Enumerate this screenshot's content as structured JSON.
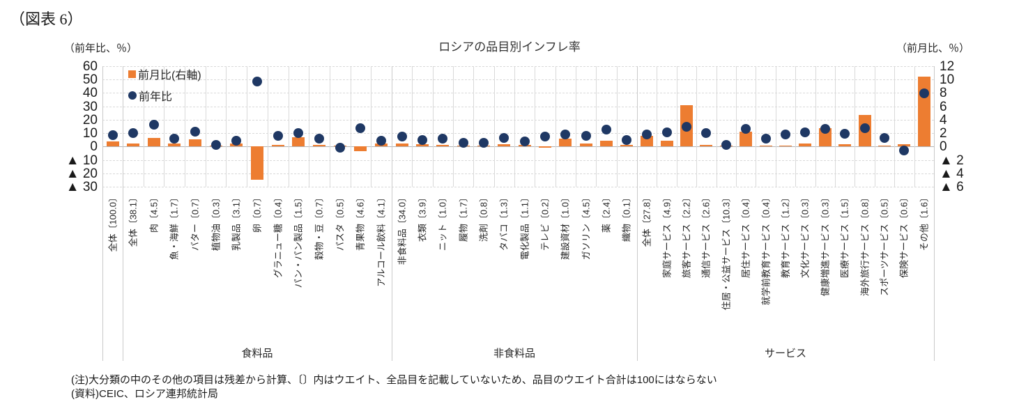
{
  "figure_label": "（図表 6）",
  "title": "ロシアの品目別インフレ率",
  "axis_left": {
    "header": "（前年比、％）",
    "ticks": [
      "60",
      "50",
      "40",
      "30",
      "20",
      "10",
      "0",
      "▲ 10",
      "▲ 20",
      "▲ 30"
    ]
  },
  "axis_right": {
    "header": "（前月比、％）",
    "ticks": [
      "12",
      "10",
      "8",
      "6",
      "4",
      "2",
      "0",
      "▲ 2",
      "▲ 4",
      "▲ 6"
    ]
  },
  "legend": {
    "mom_label": "前月比(右軸)",
    "yoy_label": "前年比"
  },
  "colors": {
    "bar": "#ED7D31",
    "dot": "#1F3864",
    "grid": "#D9D9D9",
    "zero_line": "#B3B3B3",
    "text": "#262626"
  },
  "notes": [
    "(注)大分類の中のその他の項目は残差から計算、〔〕内はウエイト、全品目を記載していないため、品目のウエイト合計は100にはならない",
    "(資料)CEIC、ロシア連邦統計局"
  ],
  "chart_data": {
    "type": "bar",
    "subtype": "combo bar(right axis)+scatter(left axis)",
    "title": "ロシアの品目別インフレ率",
    "left_axis": {
      "label": "前年比、％",
      "range": [
        -30,
        60
      ],
      "tick_step": 10,
      "series": "前年比 (dots)"
    },
    "right_axis": {
      "label": "前月比、％",
      "range": [
        -6,
        12
      ],
      "tick_step": 2,
      "series": "前月比 (bars)"
    },
    "grid": true,
    "legend_position": "top-left inside plot",
    "groups": [
      "食料品",
      "非食料品",
      "サービス"
    ],
    "group_labels": [
      "食料品",
      "非食料品",
      "サービス"
    ],
    "categories": [
      {
        "label": "全体〔100.0〕",
        "group": "",
        "yoy": 8.7,
        "mom": 0.8
      },
      {
        "label": "全体〔38.1〕",
        "group": "食料品",
        "yoy": 9.8,
        "mom": 0.4
      },
      {
        "label": "肉〔4.5〕",
        "group": "食料品",
        "yoy": 16.5,
        "mom": 1.3
      },
      {
        "label": "魚・海鮮〔1.7〕",
        "group": "食料品",
        "yoy": 6.0,
        "mom": 0.5
      },
      {
        "label": "バター〔0.7〕",
        "group": "食料品",
        "yoy": 11.3,
        "mom": 1.1
      },
      {
        "label": "植物油〔0.3〕",
        "group": "食料品",
        "yoy": 1.2,
        "mom": 0.1
      },
      {
        "label": "乳製品〔3.1〕",
        "group": "食料品",
        "yoy": 4.3,
        "mom": 0.45
      },
      {
        "label": "卵〔0.7〕",
        "group": "食料品",
        "yoy": 48.5,
        "mom": -5.0
      },
      {
        "label": "グラニュー糖〔0.4〕",
        "group": "食料品",
        "yoy": 7.8,
        "mom": 0.25
      },
      {
        "label": "パン・パン製品〔1.5〕",
        "group": "食料品",
        "yoy": 9.9,
        "mom": 1.4
      },
      {
        "label": "穀物・豆〔0.7〕",
        "group": "食料品",
        "yoy": 5.9,
        "mom": 0.25
      },
      {
        "label": "パスタ〔0.5〕",
        "group": "食料品",
        "yoy": -1.0,
        "mom": 0.1
      },
      {
        "label": "青果物〔4.6〕",
        "group": "食料品",
        "yoy": 13.7,
        "mom": -0.7
      },
      {
        "label": "アルコール飲料〔4.1〕",
        "group": "食料品",
        "yoy": 4.3,
        "mom": 0.4
      },
      {
        "label": "非食料品〔34.0〕",
        "group": "非食料品",
        "yoy": 7.5,
        "mom": 0.45
      },
      {
        "label": "衣類〔3.9〕",
        "group": "非食料品",
        "yoy": 5.0,
        "mom": 0.3
      },
      {
        "label": "ニット〔1.0〕",
        "group": "非食料品",
        "yoy": 6.0,
        "mom": 0.25
      },
      {
        "label": "履物〔1.7〕",
        "group": "非食料品",
        "yoy": 3.0,
        "mom": 0.1
      },
      {
        "label": "洗剤〔0.8〕",
        "group": "非食料品",
        "yoy": 3.0,
        "mom": 0.1
      },
      {
        "label": "タバコ〔1.3〕",
        "group": "非食料品",
        "yoy": 6.5,
        "mom": 0.3
      },
      {
        "label": "電化製品〔1.1〕",
        "group": "非食料品",
        "yoy": 3.9,
        "mom": 0.2
      },
      {
        "label": "テレビ〔0.2〕",
        "group": "非食料品",
        "yoy": 7.4,
        "mom": -0.15
      },
      {
        "label": "建設資材〔1.0〕",
        "group": "非食料品",
        "yoy": 9.0,
        "mom": 1.2
      },
      {
        "label": "ガソリン〔4.5〕",
        "group": "非食料品",
        "yoy": 7.8,
        "mom": 0.5
      },
      {
        "label": "薬〔2.4〕",
        "group": "非食料品",
        "yoy": 12.5,
        "mom": 0.9
      },
      {
        "label": "織物〔0.1〕",
        "group": "非食料品",
        "yoy": 5.0,
        "mom": 0.25
      },
      {
        "label": "全体〔27.8〕",
        "group": "サービス",
        "yoy": 9.0,
        "mom": 1.6
      },
      {
        "label": "家庭サービス〔4.9〕",
        "group": "サービス",
        "yoy": 10.4,
        "mom": 0.9
      },
      {
        "label": "旅客サービス〔2.2〕",
        "group": "サービス",
        "yoy": 14.7,
        "mom": 6.2
      },
      {
        "label": "通信サービス〔2.6〕",
        "group": "サービス",
        "yoy": 9.9,
        "mom": 0.25
      },
      {
        "label": "住居・公益サービス〔10.3〕",
        "group": "サービス",
        "yoy": 1.2,
        "mom": 0.05
      },
      {
        "label": "居住サービス〔0.4〕",
        "group": "サービス",
        "yoy": 13.4,
        "mom": 2.2
      },
      {
        "label": "就学前教育サービス〔0.4〕",
        "group": "サービス",
        "yoy": 6.1,
        "mom": 0.05
      },
      {
        "label": "教育サービス〔1.2〕",
        "group": "サービス",
        "yoy": 9.0,
        "mom": 0.1
      },
      {
        "label": "文化サービス〔0.3〕",
        "group": "サービス",
        "yoy": 10.4,
        "mom": 0.4
      },
      {
        "label": "健康増進サービス〔0.3〕",
        "group": "サービス",
        "yoy": 13.4,
        "mom": 2.7
      },
      {
        "label": "医療サービス〔1.5〕",
        "group": "サービス",
        "yoy": 9.5,
        "mom": 0.3
      },
      {
        "label": "海外旅行サービス〔0.8〕",
        "group": "サービス",
        "yoy": 13.5,
        "mom": 4.7
      },
      {
        "label": "スポーツサービス〔0.5〕",
        "group": "サービス",
        "yoy": 6.6,
        "mom": 0.1
      },
      {
        "label": "保険サービス〔0.6〕",
        "group": "サービス",
        "yoy": -3.0,
        "mom": 0.35
      },
      {
        "label": "その他〔1.6〕",
        "group": "サービス",
        "yoy": 39.5,
        "mom": 10.4
      }
    ]
  }
}
